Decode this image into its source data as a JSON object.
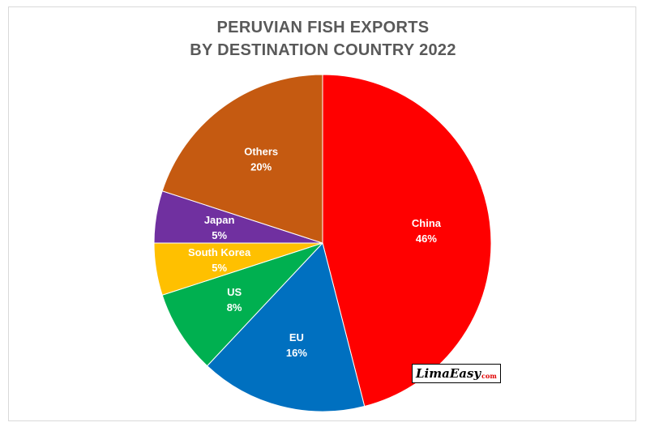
{
  "chart_data": {
    "type": "pie",
    "title_lines": [
      "PERUVIAN FISH EXPORTS",
      "BY DESTINATION COUNTRY 2022"
    ],
    "slices": [
      {
        "label": "China",
        "value": 46,
        "display": "46%",
        "color": "#ff0000"
      },
      {
        "label": "EU",
        "value": 16,
        "display": "16%",
        "color": "#0070c0"
      },
      {
        "label": "US",
        "value": 8,
        "display": "8%",
        "color": "#00b050"
      },
      {
        "label": "South Korea",
        "value": 5,
        "display": "5%",
        "color": "#ffc000"
      },
      {
        "label": "Japan",
        "value": 5,
        "display": "5%",
        "color": "#7030a0"
      },
      {
        "label": "Others",
        "value": 20,
        "display": "20%",
        "color": "#c55a11"
      }
    ],
    "start": "12 o'clock",
    "direction": "clockwise",
    "data_labels": "inside"
  },
  "watermark": {
    "text": "LimaEasy",
    "suffix": "com"
  }
}
